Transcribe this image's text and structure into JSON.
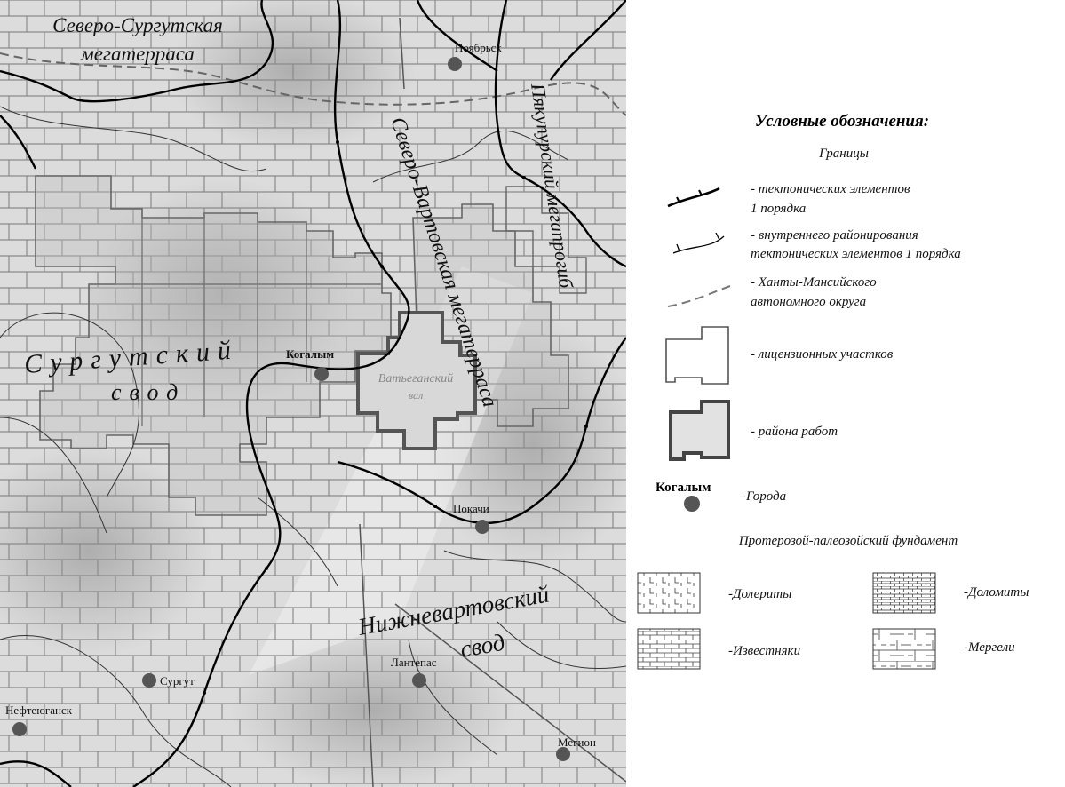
{
  "map": {
    "regions": {
      "north_surgut": [
        "Северо-Сургутская",
        "мегатерраса"
      ],
      "surgut_arch": [
        "Сургутский",
        "свод"
      ],
      "north_vartovsk": "Северо-Вартовская мегатерраса",
      "pyakupur": "Пякупурский мегапрогиб",
      "vatyegan": [
        "Ватьеганский",
        "вал"
      ],
      "nizhnevartovsk": [
        "Нижневартовский",
        "свод"
      ]
    },
    "cities": [
      "Ноябрьск",
      "Когалым",
      "Покачи",
      "Лантепас",
      "Сургут",
      "Нефтеюганск",
      "Мегион"
    ]
  },
  "legend": {
    "title": "Условные обозначения:",
    "boundaries_heading": "Границы",
    "boundaries": [
      [
        "- тектонических элементов",
        "1 порядка"
      ],
      [
        "- внутреннего районирования",
        "тектонических элементов 1 порядка"
      ],
      [
        "- Ханты-Мансийского",
        "автономного округа"
      ],
      [
        "- лицензионных участков"
      ],
      [
        "- района работ"
      ]
    ],
    "city_sample": "Когалым",
    "city_label": "-Города",
    "basement_heading": "Протерозой-палеозойский фундамент",
    "rocks": [
      "-Долериты",
      "-Доломиты",
      "-Известняки",
      "-Мергели"
    ]
  }
}
